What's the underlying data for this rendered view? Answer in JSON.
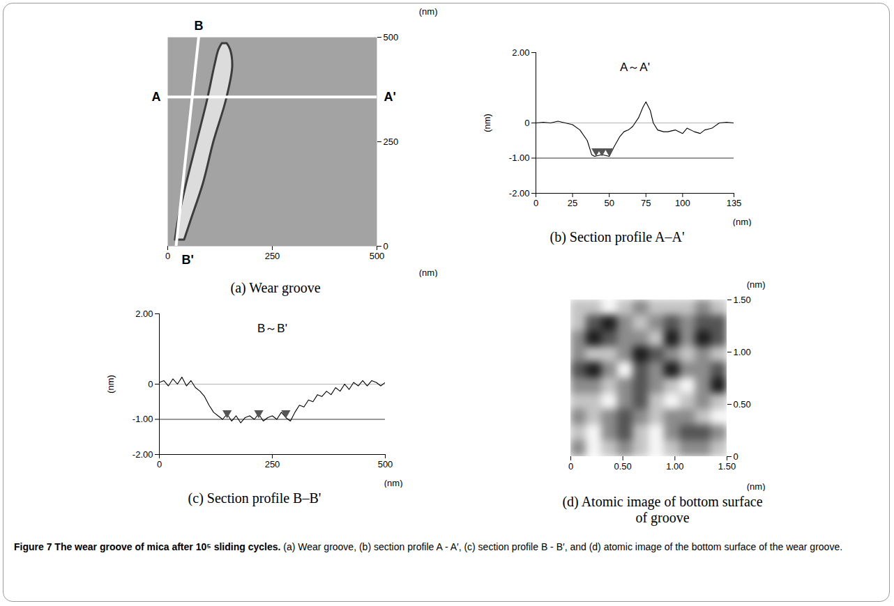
{
  "figure_caption": {
    "title": "Figure 7 The wear groove of mica after 10⁵ sliding cycles.",
    "text": "(a) Wear groove, (b) section profile A - A′, (c) section profile B - B′, and (d) atomic image of the bottom surface of the wear groove."
  },
  "chart_data": [
    {
      "type": "image",
      "title": "(a) Wear groove",
      "x_label": "(nm)",
      "y_label": "(nm)",
      "xlim": [
        0,
        500
      ],
      "ylim": [
        0,
        500
      ],
      "xticks": [
        0,
        250,
        500
      ],
      "yticks": [
        0,
        250,
        500
      ],
      "colors": [
        "#a3a3a3",
        "#dcdcdc",
        "#3c3c3c"
      ],
      "groove": {
        "y": [
          15,
          60,
          150,
          250,
          350,
          430,
          470,
          485
        ],
        "x1": [
          18,
          25,
          45,
          70,
          95,
          112,
          122,
          130
        ],
        "x2": [
          40,
          55,
          85,
          110,
          140,
          155,
          150,
          142
        ]
      },
      "sections": [
        {
          "labels": [
            "A",
            "A'"
          ],
          "x": [
            0,
            500
          ],
          "y": [
            357,
            357
          ]
        },
        {
          "labels": [
            "B",
            "B'"
          ],
          "x": [
            74,
            20
          ],
          "y": [
            500,
            0
          ]
        }
      ]
    },
    {
      "type": "line",
      "title": "(b) Section profile A–A'",
      "annotation": "A～A'",
      "x_label": "(nm)",
      "y_label": "(nm)",
      "xlim": [
        0,
        135
      ],
      "ylim": [
        -2,
        2
      ],
      "xticks": [
        0,
        25,
        50,
        75,
        100,
        135
      ],
      "yticks": [
        {
          "value": 2,
          "label": "2.00"
        },
        0,
        {
          "value": -1,
          "label": "-1.00"
        },
        {
          "value": -2,
          "label": "-2.00"
        }
      ],
      "rules": {
        "values": [
          0,
          -1
        ],
        "colors": [
          "#b5b5b5",
          "#333333"
        ]
      },
      "color": "#000000",
      "x": [
        0,
        5,
        10,
        15,
        20,
        25,
        30,
        35,
        38,
        40,
        45,
        50,
        53,
        57,
        60,
        63,
        66,
        70,
        73,
        75,
        78,
        80,
        83,
        87,
        90,
        95,
        100,
        103,
        108,
        112,
        115,
        120,
        125,
        130,
        135
      ],
      "values": [
        0,
        0.02,
        0,
        0.05,
        0,
        -0.05,
        -0.2,
        -0.5,
        -0.9,
        -0.95,
        -0.9,
        -0.95,
        -0.7,
        -0.4,
        -0.25,
        -0.2,
        -0.1,
        0.15,
        0.45,
        0.6,
        0.35,
        0,
        -0.2,
        -0.25,
        -0.25,
        -0.2,
        -0.3,
        -0.15,
        -0.25,
        -0.3,
        -0.2,
        -0.15,
        0,
        0.02,
        0
      ],
      "markers": {
        "x": [
          41,
          45,
          50
        ],
        "y": [
          -0.83,
          -0.83,
          -0.83
        ]
      }
    },
    {
      "type": "line",
      "title": "(c) Section profile B–B'",
      "annotation": "B～B'",
      "x_label": "(nm)",
      "y_label": "(nm)",
      "xlim": [
        0,
        500
      ],
      "ylim": [
        -2,
        2
      ],
      "xticks": [
        0,
        250,
        500
      ],
      "yticks": [
        {
          "value": 2,
          "label": "2.00"
        },
        0,
        {
          "value": -1,
          "label": "-1.00"
        },
        {
          "value": -2,
          "label": "-2.00"
        }
      ],
      "rules": {
        "values": [
          0,
          -1
        ],
        "colors": [
          "#b5b5b5",
          "#333333"
        ]
      },
      "color": "#000000",
      "x": [
        0,
        10,
        20,
        30,
        40,
        50,
        60,
        70,
        80,
        90,
        100,
        110,
        120,
        130,
        140,
        150,
        160,
        170,
        180,
        190,
        200,
        210,
        220,
        230,
        240,
        250,
        260,
        270,
        280,
        290,
        300,
        310,
        320,
        330,
        340,
        350,
        360,
        370,
        380,
        390,
        400,
        410,
        420,
        430,
        440,
        450,
        460,
        470,
        480,
        490,
        500
      ],
      "values": [
        0.05,
        0.1,
        -0.05,
        0.15,
        0,
        0.2,
        -0.05,
        0.1,
        -0.1,
        -0.2,
        -0.35,
        -0.6,
        -0.8,
        -0.9,
        -1.0,
        -0.85,
        -1.05,
        -0.9,
        -1.1,
        -0.95,
        -0.9,
        -1.0,
        -0.85,
        -1.05,
        -0.95,
        -0.9,
        -1.0,
        -0.8,
        -0.95,
        -1.05,
        -0.8,
        -0.6,
        -0.65,
        -0.45,
        -0.5,
        -0.3,
        -0.35,
        -0.2,
        -0.3,
        -0.1,
        -0.2,
        0.0,
        -0.15,
        0.05,
        -0.05,
        0.1,
        -0.05,
        0.1,
        0.05,
        -0.05,
        0.05
      ],
      "markers": {
        "x": [
          150,
          220,
          280
        ],
        "y": [
          -0.85,
          -0.85,
          -0.85
        ]
      }
    },
    {
      "type": "heatmap",
      "title": "(d) Atomic image of bottom surface of groove",
      "x_label": "(nm)",
      "y_label": "(nm)",
      "xlim": [
        0,
        1.5
      ],
      "ylim": [
        0,
        1.5
      ],
      "xticks": [
        0,
        {
          "value": 0.5,
          "label": "0.50"
        },
        {
          "value": 1,
          "label": "1.00"
        },
        {
          "value": 1.5,
          "label": "1.50"
        }
      ],
      "yticks": [
        0,
        {
          "value": 0.5,
          "label": "0.50"
        },
        {
          "value": 1,
          "label": "1.00"
        },
        {
          "value": 1.5,
          "label": "1.50"
        }
      ],
      "colors": [
        "#1e1e1e",
        "#555555",
        "#8c8c8c",
        "#c4c4c4",
        "#f6f6f6"
      ],
      "cells": [
        [
          3,
          3,
          4,
          3,
          2,
          3,
          3,
          3,
          2,
          3
        ],
        [
          3,
          1,
          0,
          2,
          3,
          2,
          1,
          2,
          1,
          1
        ],
        [
          2,
          0,
          1,
          2,
          2,
          3,
          0,
          2,
          0,
          1
        ],
        [
          2,
          3,
          3,
          2,
          0,
          1,
          2,
          3,
          2,
          3
        ],
        [
          1,
          0,
          2,
          4,
          1,
          2,
          0,
          2,
          2,
          1
        ],
        [
          2,
          2,
          3,
          2,
          1,
          2,
          3,
          4,
          2,
          0
        ],
        [
          3,
          3,
          4,
          2,
          1,
          3,
          4,
          3,
          2,
          3
        ],
        [
          2,
          3,
          2,
          1,
          2,
          3,
          2,
          2,
          3,
          4
        ],
        [
          3,
          4,
          2,
          1,
          3,
          4,
          2,
          1,
          1,
          2
        ],
        [
          2,
          4,
          3,
          2,
          3,
          4,
          3,
          2,
          2,
          3
        ]
      ]
    }
  ]
}
